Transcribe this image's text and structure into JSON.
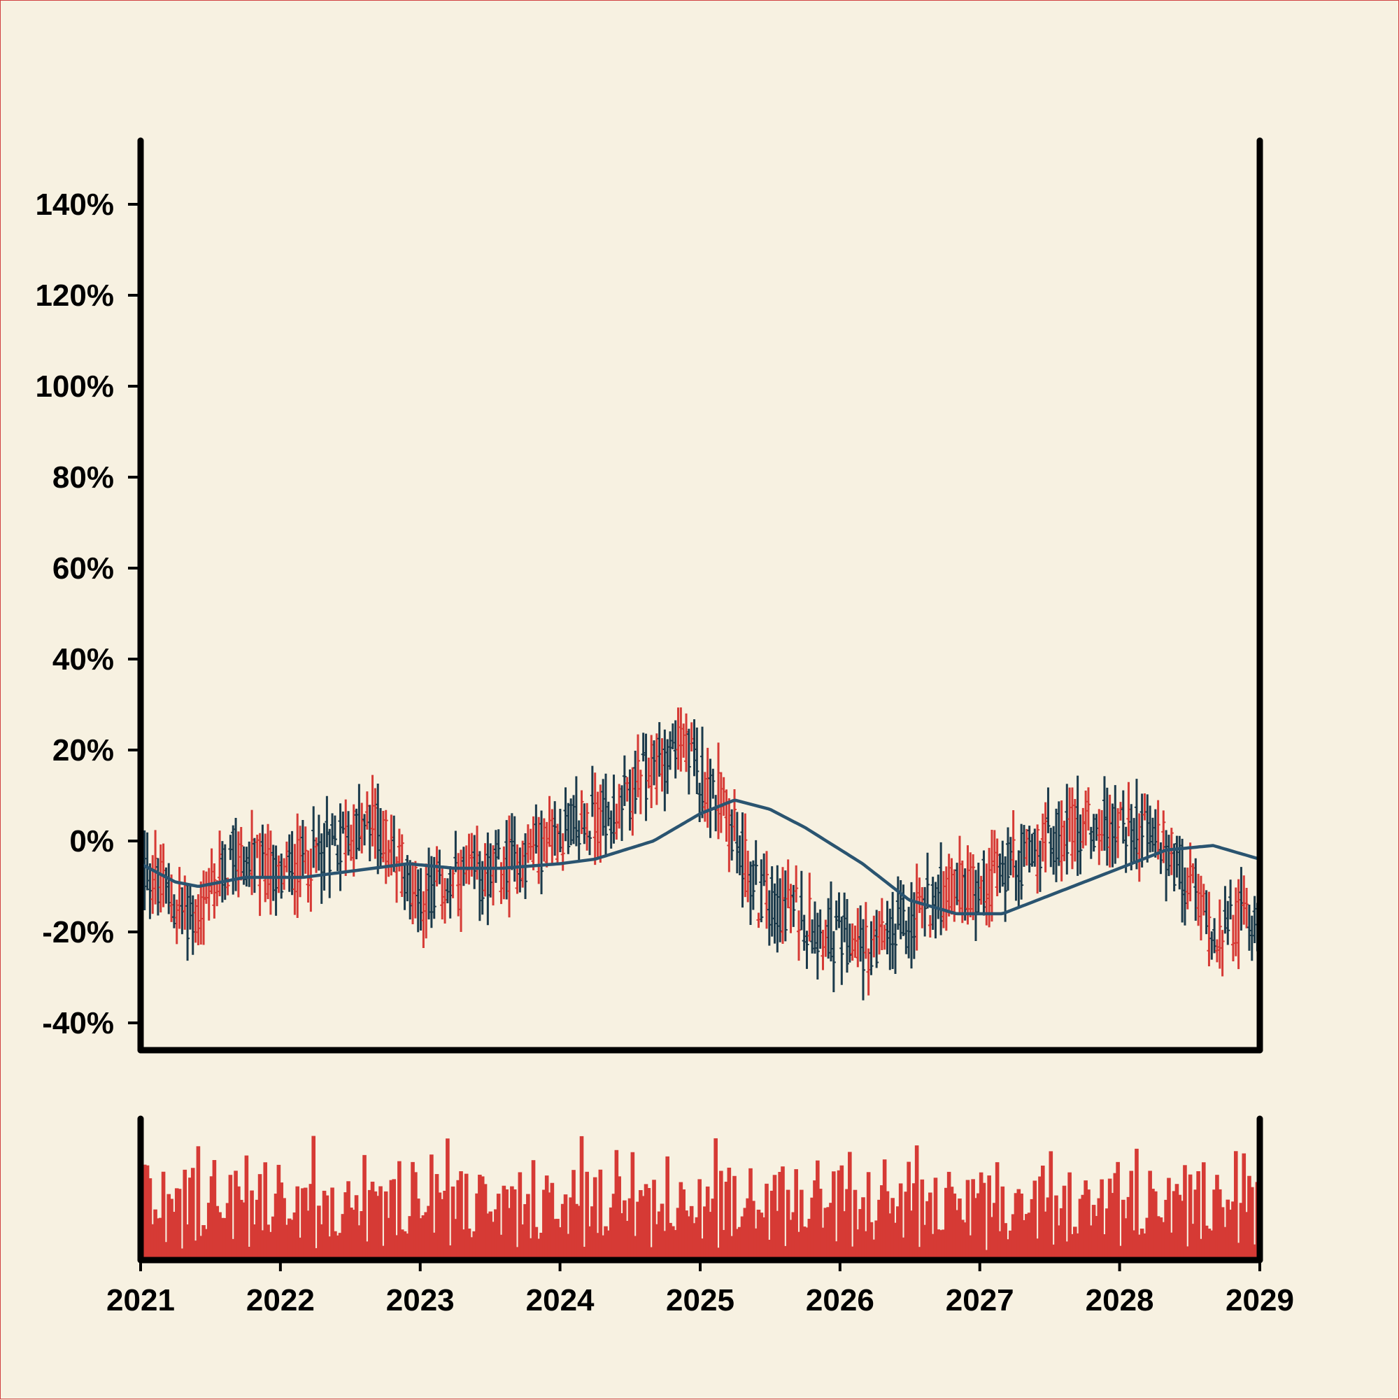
{
  "colors": {
    "background": "#f7f1e1",
    "up": "#d63a35",
    "down": "#1b3a4b",
    "moving_average": "#2a5470",
    "volume": "#d63a35",
    "axis": "#000000"
  },
  "chart_data": {
    "type": "ohlc",
    "title": "",
    "xlabel": "",
    "ylabel": "",
    "x_range": [
      "2021-01-01",
      "2029-01-01"
    ],
    "x_tick_labels": [
      "2021",
      "2022",
      "2023",
      "2024",
      "2025",
      "2026",
      "2027",
      "2028",
      "2029"
    ],
    "y_range": [
      -46,
      154
    ],
    "y_ticks": [
      -40,
      -20,
      0,
      20,
      40,
      60,
      80,
      100,
      120,
      140
    ],
    "y_tick_labels": [
      "-40%",
      "-20%",
      "0%",
      "20%",
      "40%",
      "60%",
      "80%",
      "100%",
      "120%",
      "140%"
    ],
    "grid": false,
    "legend": "none",
    "price_anchors": [
      {
        "date": "2021-01-01",
        "value": -5
      },
      {
        "date": "2021-04-01",
        "value": -14
      },
      {
        "date": "2021-06-01",
        "value": -17
      },
      {
        "date": "2021-09-01",
        "value": -3
      },
      {
        "date": "2022-01-01",
        "value": -8
      },
      {
        "date": "2022-06-01",
        "value": 0
      },
      {
        "date": "2022-09-01",
        "value": 4
      },
      {
        "date": "2023-01-01",
        "value": -12
      },
      {
        "date": "2023-06-01",
        "value": -8
      },
      {
        "date": "2023-09-01",
        "value": -5
      },
      {
        "date": "2024-01-01",
        "value": 2
      },
      {
        "date": "2024-06-01",
        "value": 7
      },
      {
        "date": "2024-11-01",
        "value": 22
      },
      {
        "date": "2025-03-01",
        "value": 8
      },
      {
        "date": "2025-06-01",
        "value": -12
      },
      {
        "date": "2025-09-01",
        "value": -15
      },
      {
        "date": "2026-01-01",
        "value": -22
      },
      {
        "date": "2026-04-01",
        "value": -24
      },
      {
        "date": "2026-09-01",
        "value": -12
      },
      {
        "date": "2027-01-01",
        "value": -10
      },
      {
        "date": "2027-06-01",
        "value": -2
      },
      {
        "date": "2027-10-01",
        "value": 4
      },
      {
        "date": "2028-03-01",
        "value": 3
      },
      {
        "date": "2028-06-01",
        "value": -5
      },
      {
        "date": "2028-09-01",
        "value": -20
      },
      {
        "date": "2029-01-01",
        "value": -15
      }
    ],
    "moving_average": [
      {
        "date": "2021-01-01",
        "value": -5
      },
      {
        "date": "2021-04-01",
        "value": -9
      },
      {
        "date": "2021-06-01",
        "value": -10
      },
      {
        "date": "2021-10-01",
        "value": -8
      },
      {
        "date": "2022-03-01",
        "value": -8
      },
      {
        "date": "2022-06-01",
        "value": -7
      },
      {
        "date": "2022-09-01",
        "value": -6
      },
      {
        "date": "2022-12-01",
        "value": -5
      },
      {
        "date": "2023-04-01",
        "value": -6
      },
      {
        "date": "2023-08-01",
        "value": -6
      },
      {
        "date": "2024-01-01",
        "value": -5
      },
      {
        "date": "2024-04-01",
        "value": -4
      },
      {
        "date": "2024-09-01",
        "value": 0
      },
      {
        "date": "2025-01-01",
        "value": 6
      },
      {
        "date": "2025-04-01",
        "value": 9
      },
      {
        "date": "2025-07-01",
        "value": 7
      },
      {
        "date": "2025-10-01",
        "value": 3
      },
      {
        "date": "2026-03-01",
        "value": -5
      },
      {
        "date": "2026-07-01",
        "value": -13
      },
      {
        "date": "2026-11-01",
        "value": -16
      },
      {
        "date": "2027-03-01",
        "value": -16
      },
      {
        "date": "2027-08-01",
        "value": -11
      },
      {
        "date": "2028-01-01",
        "value": -6
      },
      {
        "date": "2028-05-01",
        "value": -2
      },
      {
        "date": "2028-09-01",
        "value": -1
      },
      {
        "date": "2029-01-01",
        "value": -4
      }
    ],
    "volume_range": [
      0,
      1
    ],
    "volume_pattern": [
      0.55,
      0.92,
      0.35,
      0.7,
      0.2,
      0.85,
      0.5,
      0.78,
      0.3,
      0.62,
      0.95,
      0.15,
      0.68,
      0.42,
      0.88,
      0.25,
      0.74,
      0.58,
      0.1,
      0.81,
      0.47,
      0.66,
      0.33,
      0.9,
      0.22,
      0.71,
      0.52,
      0.84,
      0.38,
      0.6
    ]
  }
}
